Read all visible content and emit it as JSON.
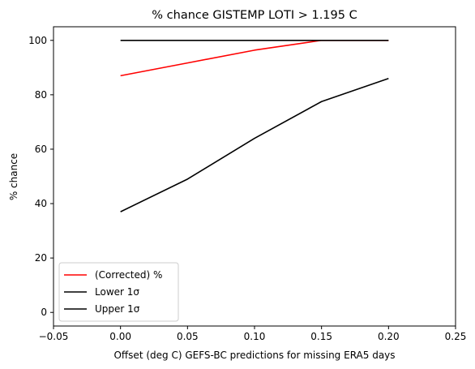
{
  "chart_data": {
    "type": "line",
    "title": "% chance GISTEMP LOTI > 1.195 C",
    "xlabel": "Offset (deg C) GEFS-BC predictions for missing ERA5 days",
    "ylabel": "% chance",
    "xlim": [
      -0.05,
      0.25
    ],
    "ylim": [
      -5,
      105
    ],
    "x_ticks": [
      -0.05,
      0.0,
      0.05,
      0.1,
      0.15,
      0.2,
      0.25
    ],
    "x_tick_labels": [
      "−0.05",
      "0.00",
      "0.05",
      "0.10",
      "0.15",
      "0.20",
      "0.25"
    ],
    "y_ticks": [
      0,
      20,
      40,
      60,
      80,
      100
    ],
    "y_tick_labels": [
      "0",
      "20",
      "40",
      "60",
      "80",
      "100"
    ],
    "grid": false,
    "legend_position": "lower-left",
    "x": [
      0.0,
      0.05,
      0.1,
      0.15,
      0.2
    ],
    "series": [
      {
        "name": "(Corrected) %",
        "color": "#ff0000",
        "values": [
          87,
          91.7,
          96.4,
          100,
          100
        ]
      },
      {
        "name": "Lower 1σ",
        "color": "#000000",
        "values": [
          37,
          49,
          64,
          77.5,
          86
        ]
      },
      {
        "name": "Upper 1σ",
        "color": "#000000",
        "values": [
          100,
          100,
          100,
          100,
          100
        ]
      }
    ]
  }
}
